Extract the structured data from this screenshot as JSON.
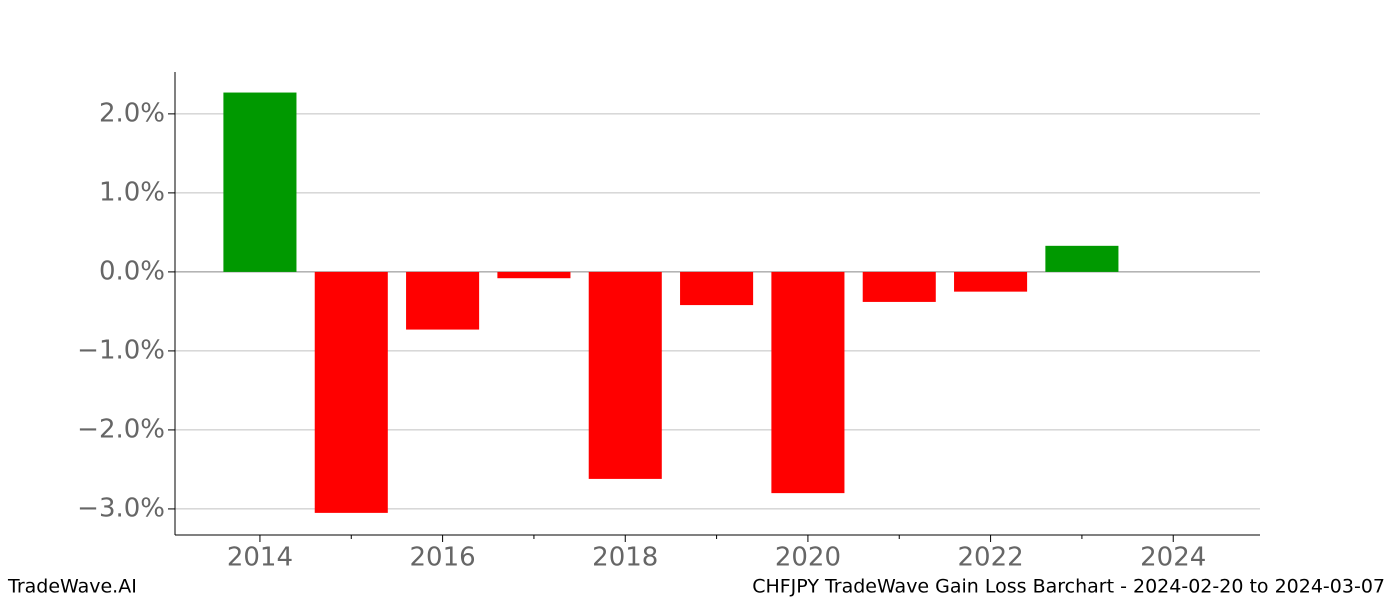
{
  "chart_data": {
    "type": "bar",
    "title": "CHFJPY TradeWave Gain Loss Barchart - 2024-02-20 to 2024-03-07",
    "brand": "TradeWave.AI",
    "x": [
      2014,
      2015,
      2016,
      2017,
      2018,
      2019,
      2020,
      2021,
      2022,
      2023
    ],
    "values": [
      2.27,
      -3.05,
      -0.73,
      -0.08,
      -2.62,
      -0.42,
      -2.8,
      -0.38,
      -0.25,
      0.33
    ],
    "positive_color": "#009900",
    "negative_color": "#ff0000",
    "xlim": [
      2013.07,
      2024.95
    ],
    "xticks": [
      2014,
      2016,
      2018,
      2020,
      2022,
      2024
    ],
    "xminorticks": [
      2015,
      2017,
      2019,
      2021,
      2023
    ],
    "ylim": [
      -3.33,
      2.53
    ],
    "yticks": [
      {
        "value": 2,
        "label": "2.0%"
      },
      {
        "value": 1,
        "label": "1.0%"
      },
      {
        "value": 0,
        "label": "0.0%"
      },
      {
        "value": -1,
        "label": "−1.0%"
      },
      {
        "value": -2,
        "label": "−2.0%"
      },
      {
        "value": -3,
        "label": "−3.0%"
      }
    ],
    "grid": true
  }
}
